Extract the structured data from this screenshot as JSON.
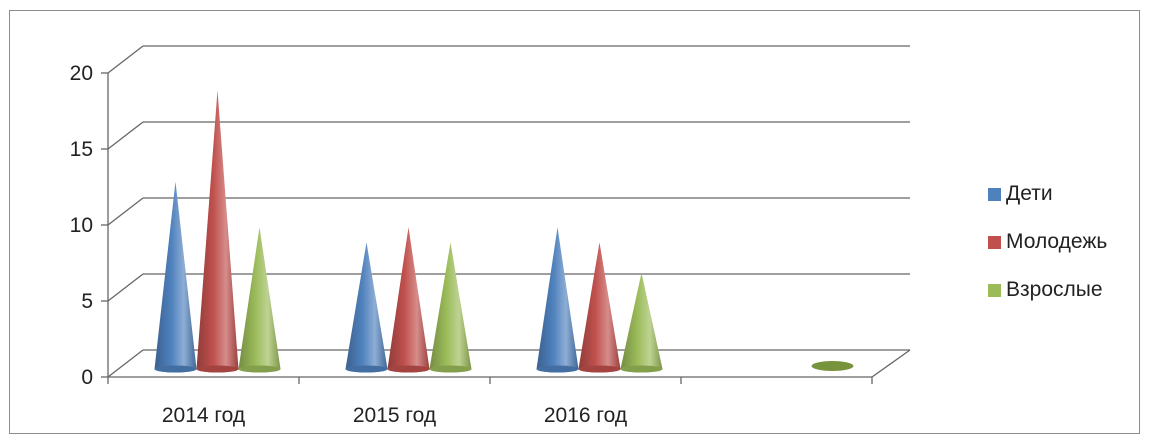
{
  "chart_data": {
    "type": "bar",
    "style": "3d-cone",
    "title": "",
    "xlabel": "",
    "ylabel": "",
    "categories": [
      "2014 год",
      "2015 год",
      "2016 год",
      ""
    ],
    "series": [
      {
        "name": "Дети",
        "values": [
          12,
          8,
          9,
          0
        ],
        "color": "#4f81bd"
      },
      {
        "name": "Молодежь",
        "values": [
          18,
          9,
          8,
          0
        ],
        "color": "#c0504d"
      },
      {
        "name": "Взрослые",
        "values": [
          9,
          8,
          6,
          0
        ],
        "color": "#9bbb59"
      }
    ],
    "y_ticks": [
      "0",
      "5",
      "10",
      "15",
      "20"
    ],
    "ylim": [
      0,
      20
    ],
    "grid": true,
    "legend": "right"
  }
}
